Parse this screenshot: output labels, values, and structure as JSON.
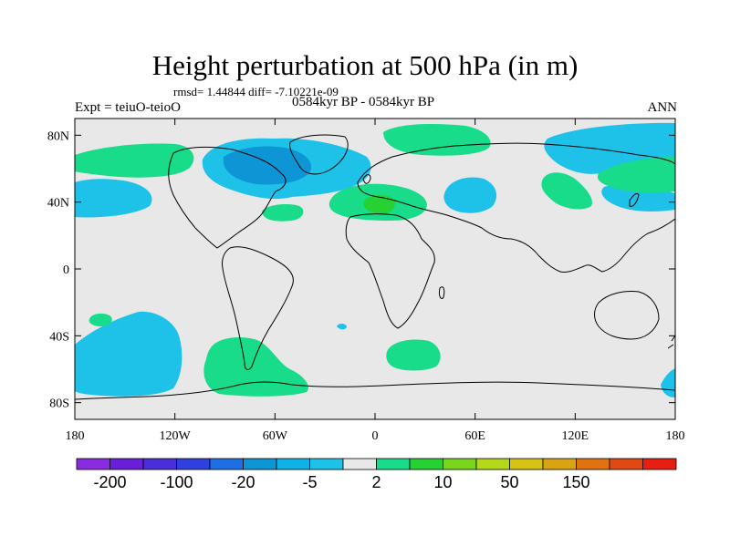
{
  "title": "Height perturbation at 500 hPa (in m)",
  "stats": "rmsd= 1.44844 diff= -7.10221e-09",
  "experiment": "Expt = teiuO-teioO",
  "period": "0584kyr BP - 0584kyr BP",
  "season": "ANN",
  "map": {
    "projection": "cylindrical-equidistant",
    "lon_range": [
      -180,
      180
    ],
    "lat_range": [
      -90,
      90
    ],
    "background_color": "#e8e8e8",
    "coastline_color": "#000000",
    "lat_ticks": [
      {
        "value": 80,
        "label": "80N"
      },
      {
        "value": 40,
        "label": "40N"
      },
      {
        "value": 0,
        "label": "0"
      },
      {
        "value": -40,
        "label": "40S"
      },
      {
        "value": -80,
        "label": "80S"
      }
    ],
    "lon_ticks": [
      {
        "value": -180,
        "label": "180"
      },
      {
        "value": -120,
        "label": "120W"
      },
      {
        "value": -60,
        "label": "60W"
      },
      {
        "value": 0,
        "label": "0"
      },
      {
        "value": 60,
        "label": "60E"
      },
      {
        "value": 120,
        "label": "120E"
      },
      {
        "value": 180,
        "label": "180"
      }
    ]
  },
  "colorbar": {
    "colors": [
      "#8a2be2",
      "#6a1ed8",
      "#4b2ddb",
      "#2f3fe0",
      "#1e6ee6",
      "#0e95d6",
      "#10b1e6",
      "#1ec2e8",
      "#e8e8e8",
      "#18dc8a",
      "#26d233",
      "#78d61c",
      "#b4d81a",
      "#d8c214",
      "#d8a412",
      "#e07212",
      "#e04a12",
      "#e81e12"
    ],
    "labels": [
      {
        "boundary": 1,
        "text": "-200"
      },
      {
        "boundary": 3,
        "text": "-100"
      },
      {
        "boundary": 5,
        "text": "-20"
      },
      {
        "boundary": 7,
        "text": "-5"
      },
      {
        "boundary": 9,
        "text": "2"
      },
      {
        "boundary": 11,
        "text": "10"
      },
      {
        "boundary": 13,
        "text": "50"
      },
      {
        "boundary": 15,
        "text": "150"
      }
    ]
  },
  "anomaly_regions": [
    {
      "name": "north-america-arctic",
      "sign": "negative",
      "color": "#1ec2e8"
    },
    {
      "name": "canada-core",
      "sign": "negative",
      "color": "#0e95d6"
    },
    {
      "name": "north-pacific",
      "sign": "negative",
      "color": "#1ec2e8"
    },
    {
      "name": "eastern-europe",
      "sign": "negative",
      "color": "#1ec2e8"
    },
    {
      "name": "siberia",
      "sign": "negative",
      "color": "#1ec2e8"
    },
    {
      "name": "south-pacific",
      "sign": "negative",
      "color": "#1ec2e8"
    },
    {
      "name": "south-atlantic-small",
      "sign": "negative",
      "color": "#1ec2e8"
    },
    {
      "name": "antarctic-edge",
      "sign": "negative",
      "color": "#1ec2e8"
    },
    {
      "name": "arctic-pacific",
      "sign": "positive",
      "color": "#18dc8a"
    },
    {
      "name": "north-atlantic-arctic",
      "sign": "positive",
      "color": "#18dc8a"
    },
    {
      "name": "europe",
      "sign": "positive",
      "color": "#18dc8a"
    },
    {
      "name": "mediterranean",
      "sign": "positive",
      "color": "#26d233"
    },
    {
      "name": "central-asia",
      "sign": "positive",
      "color": "#18dc8a"
    },
    {
      "name": "north-pacific-east-asia",
      "sign": "positive",
      "color": "#18dc8a"
    },
    {
      "name": "western-atlantic",
      "sign": "positive",
      "color": "#18dc8a"
    },
    {
      "name": "south-america-southern-ocean",
      "sign": "positive",
      "color": "#18dc8a"
    },
    {
      "name": "south-indian-ocean",
      "sign": "positive",
      "color": "#18dc8a"
    },
    {
      "name": "tropical-pacific-south",
      "sign": "positive",
      "color": "#18dc8a"
    }
  ]
}
